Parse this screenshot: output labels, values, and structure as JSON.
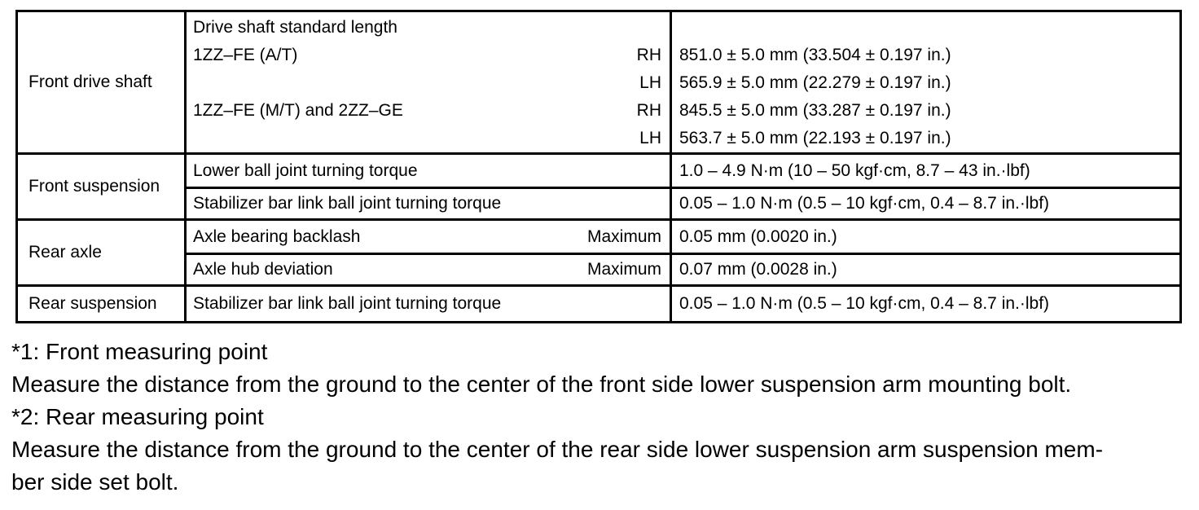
{
  "table": {
    "blocks": [
      {
        "category": "Front drive shaft",
        "rows": [
          {
            "desc": "Drive shaft standard length",
            "side": "",
            "value": ""
          },
          {
            "desc": "1ZZ–FE (A/T)",
            "side": "RH",
            "value": "851.0 ± 5.0 mm (33.504 ± 0.197 in.)"
          },
          {
            "desc": "",
            "side": "LH",
            "value": "565.9 ± 5.0 mm (22.279 ± 0.197 in.)"
          },
          {
            "desc": "1ZZ–FE (M/T) and 2ZZ–GE",
            "side": "RH",
            "value": "845.5 ± 5.0 mm (33.287 ± 0.197 in.)"
          },
          {
            "desc": "",
            "side": "LH",
            "value": "563.7 ± 5.0 mm (22.193 ± 0.197 in.)"
          }
        ]
      },
      {
        "category": "Front suspension",
        "rows": [
          {
            "desc": "Lower ball joint turning torque",
            "side": "",
            "value": "1.0 – 4.9 N·m (10 – 50 kgf·cm, 8.7 – 43 in.·lbf)"
          },
          {
            "desc": "Stabilizer bar link ball joint turning torque",
            "side": "",
            "value": "0.05 – 1.0 N·m (0.5 – 10 kgf·cm, 0.4 – 8.7 in.·lbf)"
          }
        ]
      },
      {
        "category": "Rear axle",
        "rows": [
          {
            "desc": "Axle bearing backlash",
            "side": "Maximum",
            "value": "0.05 mm (0.0020 in.)"
          },
          {
            "desc": "Axle hub deviation",
            "side": "Maximum",
            "value": "0.07 mm (0.0028 in.)"
          }
        ]
      },
      {
        "category": "Rear suspension",
        "rows": [
          {
            "desc": "Stabilizer bar link ball joint turning torque",
            "side": "",
            "value": "0.05 – 1.0 N·m (0.5 – 10 kgf·cm, 0.4 – 8.7 in.·lbf)"
          }
        ]
      }
    ]
  },
  "notes": {
    "lines": [
      "*1: Front measuring point",
      "Measure the distance from the ground to the center of the front side lower suspension arm mounting bolt.",
      "*2: Rear measuring point",
      "Measure the distance from the ground to the center of the rear side lower suspension arm suspension mem-",
      "ber side set bolt."
    ]
  }
}
